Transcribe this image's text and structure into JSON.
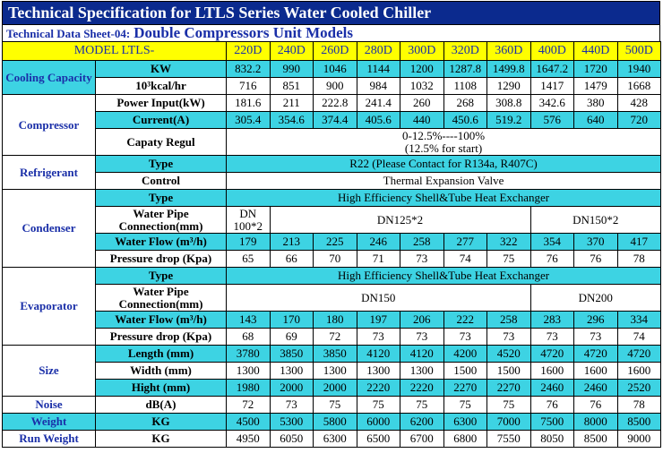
{
  "header": {
    "title": "Technical Specification for LTLS Series Water Cooled Chiller",
    "sheet": "Technical Data Sheet-04:",
    "subtitle": "Double Compressors Unit Models"
  },
  "table": {
    "model_label": "MODEL LTLS-",
    "header_color": "#ffff00",
    "models": [
      "220D",
      "240D",
      "260D",
      "280D",
      "300D",
      "320D",
      "360D",
      "400D",
      "440D",
      "500D"
    ],
    "groups": [
      {
        "name": "Cooling Capacity",
        "color": "#3dd3e3",
        "rows": [
          {
            "label": "KW",
            "color": "#3dd3e3",
            "cells": [
              832.2,
              990,
              1046,
              1144,
              1200,
              1287.8,
              1499.8,
              1647.2,
              1720,
              1940
            ]
          },
          {
            "label": "10³kcal/hr",
            "cells": [
              716,
              851,
              900,
              984,
              1032,
              1108,
              1290,
              1417,
              1479,
              1668
            ]
          }
        ]
      },
      {
        "name": "Compressor",
        "rows": [
          {
            "label": "Power Input(kW)",
            "cells": [
              181.6,
              211,
              222.8,
              241.4,
              260,
              268,
              308.8,
              342.6,
              380,
              428
            ]
          },
          {
            "label": "Current(A)",
            "color": "#3dd3e3",
            "cells": [
              305.4,
              354.6,
              374.4,
              405.6,
              440,
              450.6,
              519.2,
              576,
              640,
              720
            ]
          },
          {
            "label": "Capaty Regul",
            "cells": [
              [
                "0-12.5%----100%",
                "(12.5% for start)"
              ]
            ]
          }
        ]
      },
      {
        "name": "Refrigerant",
        "rows": [
          {
            "label": "Type",
            "color": "#3dd3e3",
            "cells": [
              "R22 (Please Contact for R134a, R407C)"
            ]
          },
          {
            "label": "Control",
            "cells": [
              "Thermal Expansion Valve"
            ]
          }
        ]
      },
      {
        "name": "Condenser",
        "rows": [
          {
            "label": "Type",
            "color": "#3dd3e3",
            "cells": [
              "High Efficiency Shell&Tube Heat Exchanger"
            ]
          },
          {
            "label": "Water Pipe Connection(mm)",
            "cells": [
              "DN 100*2",
              "DN125*2",
              "DN150*2"
            ]
          },
          {
            "label": "Water Flow (m³/h)",
            "color": "#3dd3e3",
            "cells": [
              179,
              213,
              225,
              246,
              258,
              277,
              322,
              354,
              370,
              417
            ]
          },
          {
            "label": "Pressure drop (Kpa)",
            "cells": [
              65,
              66,
              70,
              71,
              73,
              74,
              75,
              76,
              76,
              78
            ]
          }
        ]
      },
      {
        "name": "Evaporator",
        "rows": [
          {
            "label": "Type",
            "color": "#3dd3e3",
            "cells": [
              "High Efficiency Shell&Tube Heat Exchanger"
            ]
          },
          {
            "label": "Water Pipe Connection(mm)",
            "cells": [
              "DN150",
              "DN200"
            ]
          },
          {
            "label": "Water Flow (m³/h)",
            "color": "#3dd3e3",
            "cells": [
              143,
              170,
              180,
              197,
              206,
              222,
              258,
              283,
              296,
              334
            ]
          },
          {
            "label": "Pressure drop (Kpa)",
            "cells": [
              68,
              69,
              72,
              73,
              73,
              73,
              73,
              73,
              73,
              74
            ]
          }
        ]
      },
      {
        "name": "Size",
        "rows": [
          {
            "label": "Length (mm)",
            "color": "#3dd3e3",
            "cells": [
              3780,
              3850,
              3850,
              4120,
              4120,
              4200,
              4520,
              4720,
              4720,
              4720
            ]
          },
          {
            "label": "Width (mm)",
            "cells": [
              1300,
              1300,
              1300,
              1300,
              1300,
              1500,
              1500,
              1600,
              1600,
              1600
            ]
          },
          {
            "label": "Hight (mm)",
            "color": "#3dd3e3",
            "cells": [
              1980,
              2000,
              2000,
              2220,
              2220,
              2270,
              2270,
              2460,
              2460,
              2520
            ]
          }
        ]
      },
      {
        "name": "Noise",
        "rows": [
          {
            "label": "dB(A)",
            "cells": [
              72,
              73,
              75,
              75,
              75,
              75,
              75,
              76,
              76,
              78
            ]
          }
        ]
      },
      {
        "name": "Weight",
        "color": "#3dd3e3",
        "rows": [
          {
            "label": "KG",
            "color": "#3dd3e3",
            "cells": [
              4500,
              5300,
              5800,
              6000,
              6200,
              6300,
              7000,
              7500,
              8000,
              8500
            ]
          }
        ]
      },
      {
        "name": "Run Weight",
        "rows": [
          {
            "label": "KG",
            "cells": [
              4950,
              6050,
              6300,
              6500,
              6700,
              6800,
              7550,
              8050,
              8500,
              9000
            ]
          }
        ]
      }
    ]
  }
}
